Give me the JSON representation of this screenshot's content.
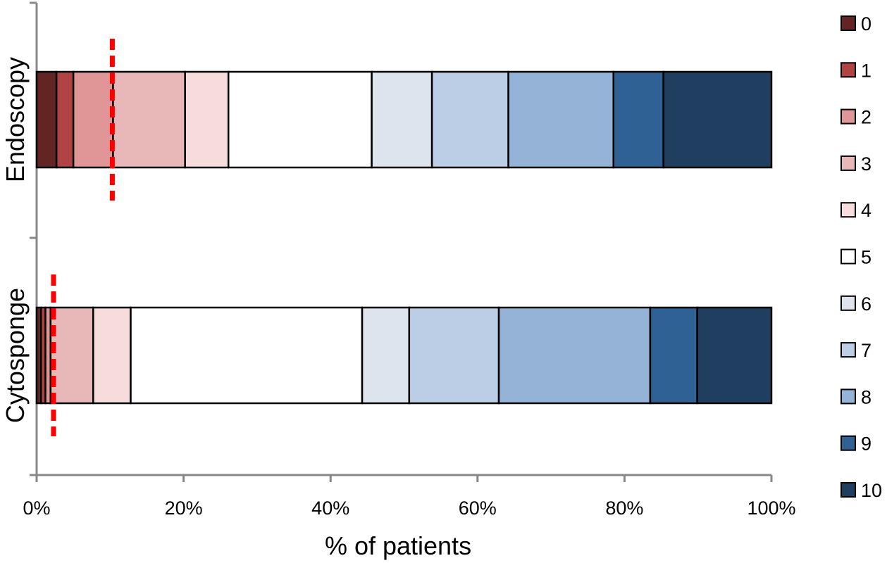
{
  "chart_data": {
    "type": "bar",
    "orientation": "horizontal",
    "stacked": "percent",
    "xlabel": "% of patients",
    "ylabel": "",
    "xlim": [
      0,
      100
    ],
    "xticks": [
      "0%",
      "20%",
      "40%",
      "60%",
      "80%",
      "100%"
    ],
    "grid": false,
    "legend_position": "right",
    "categories": [
      "Endoscopy",
      "Cytosponge"
    ],
    "series": [
      {
        "name": "0",
        "color": "#632523",
        "values": [
          2.7,
          0.6
        ]
      },
      {
        "name": "1",
        "color": "#b04444",
        "values": [
          2.3,
          0.6
        ]
      },
      {
        "name": "2",
        "color": "#e09697",
        "values": [
          5.4,
          0.7
        ]
      },
      {
        "name": "3",
        "color": "#e8b8b8",
        "values": [
          9.8,
          5.8
        ]
      },
      {
        "name": "4",
        "color": "#f6dcdc",
        "values": [
          5.9,
          5.1
        ]
      },
      {
        "name": "5",
        "color": "#ffffff",
        "values": [
          19.5,
          31.5
        ]
      },
      {
        "name": "6",
        "color": "#dde4ee",
        "values": [
          8.2,
          6.4
        ]
      },
      {
        "name": "7",
        "color": "#bccde6",
        "values": [
          10.4,
          12.2
        ]
      },
      {
        "name": "8",
        "color": "#95b3d7",
        "values": [
          14.3,
          20.6
        ]
      },
      {
        "name": "9",
        "color": "#2f6194",
        "values": [
          6.8,
          6.4
        ]
      },
      {
        "name": "10",
        "color": "#203f60",
        "values": [
          14.7,
          10.1
        ]
      }
    ],
    "reference_lines": [
      {
        "category": "Endoscopy",
        "value": 10.3,
        "color": "#ff0000",
        "style": "dashed"
      },
      {
        "category": "Cytosponge",
        "value": 2.3,
        "color": "#ff0000",
        "style": "dashed"
      }
    ]
  }
}
